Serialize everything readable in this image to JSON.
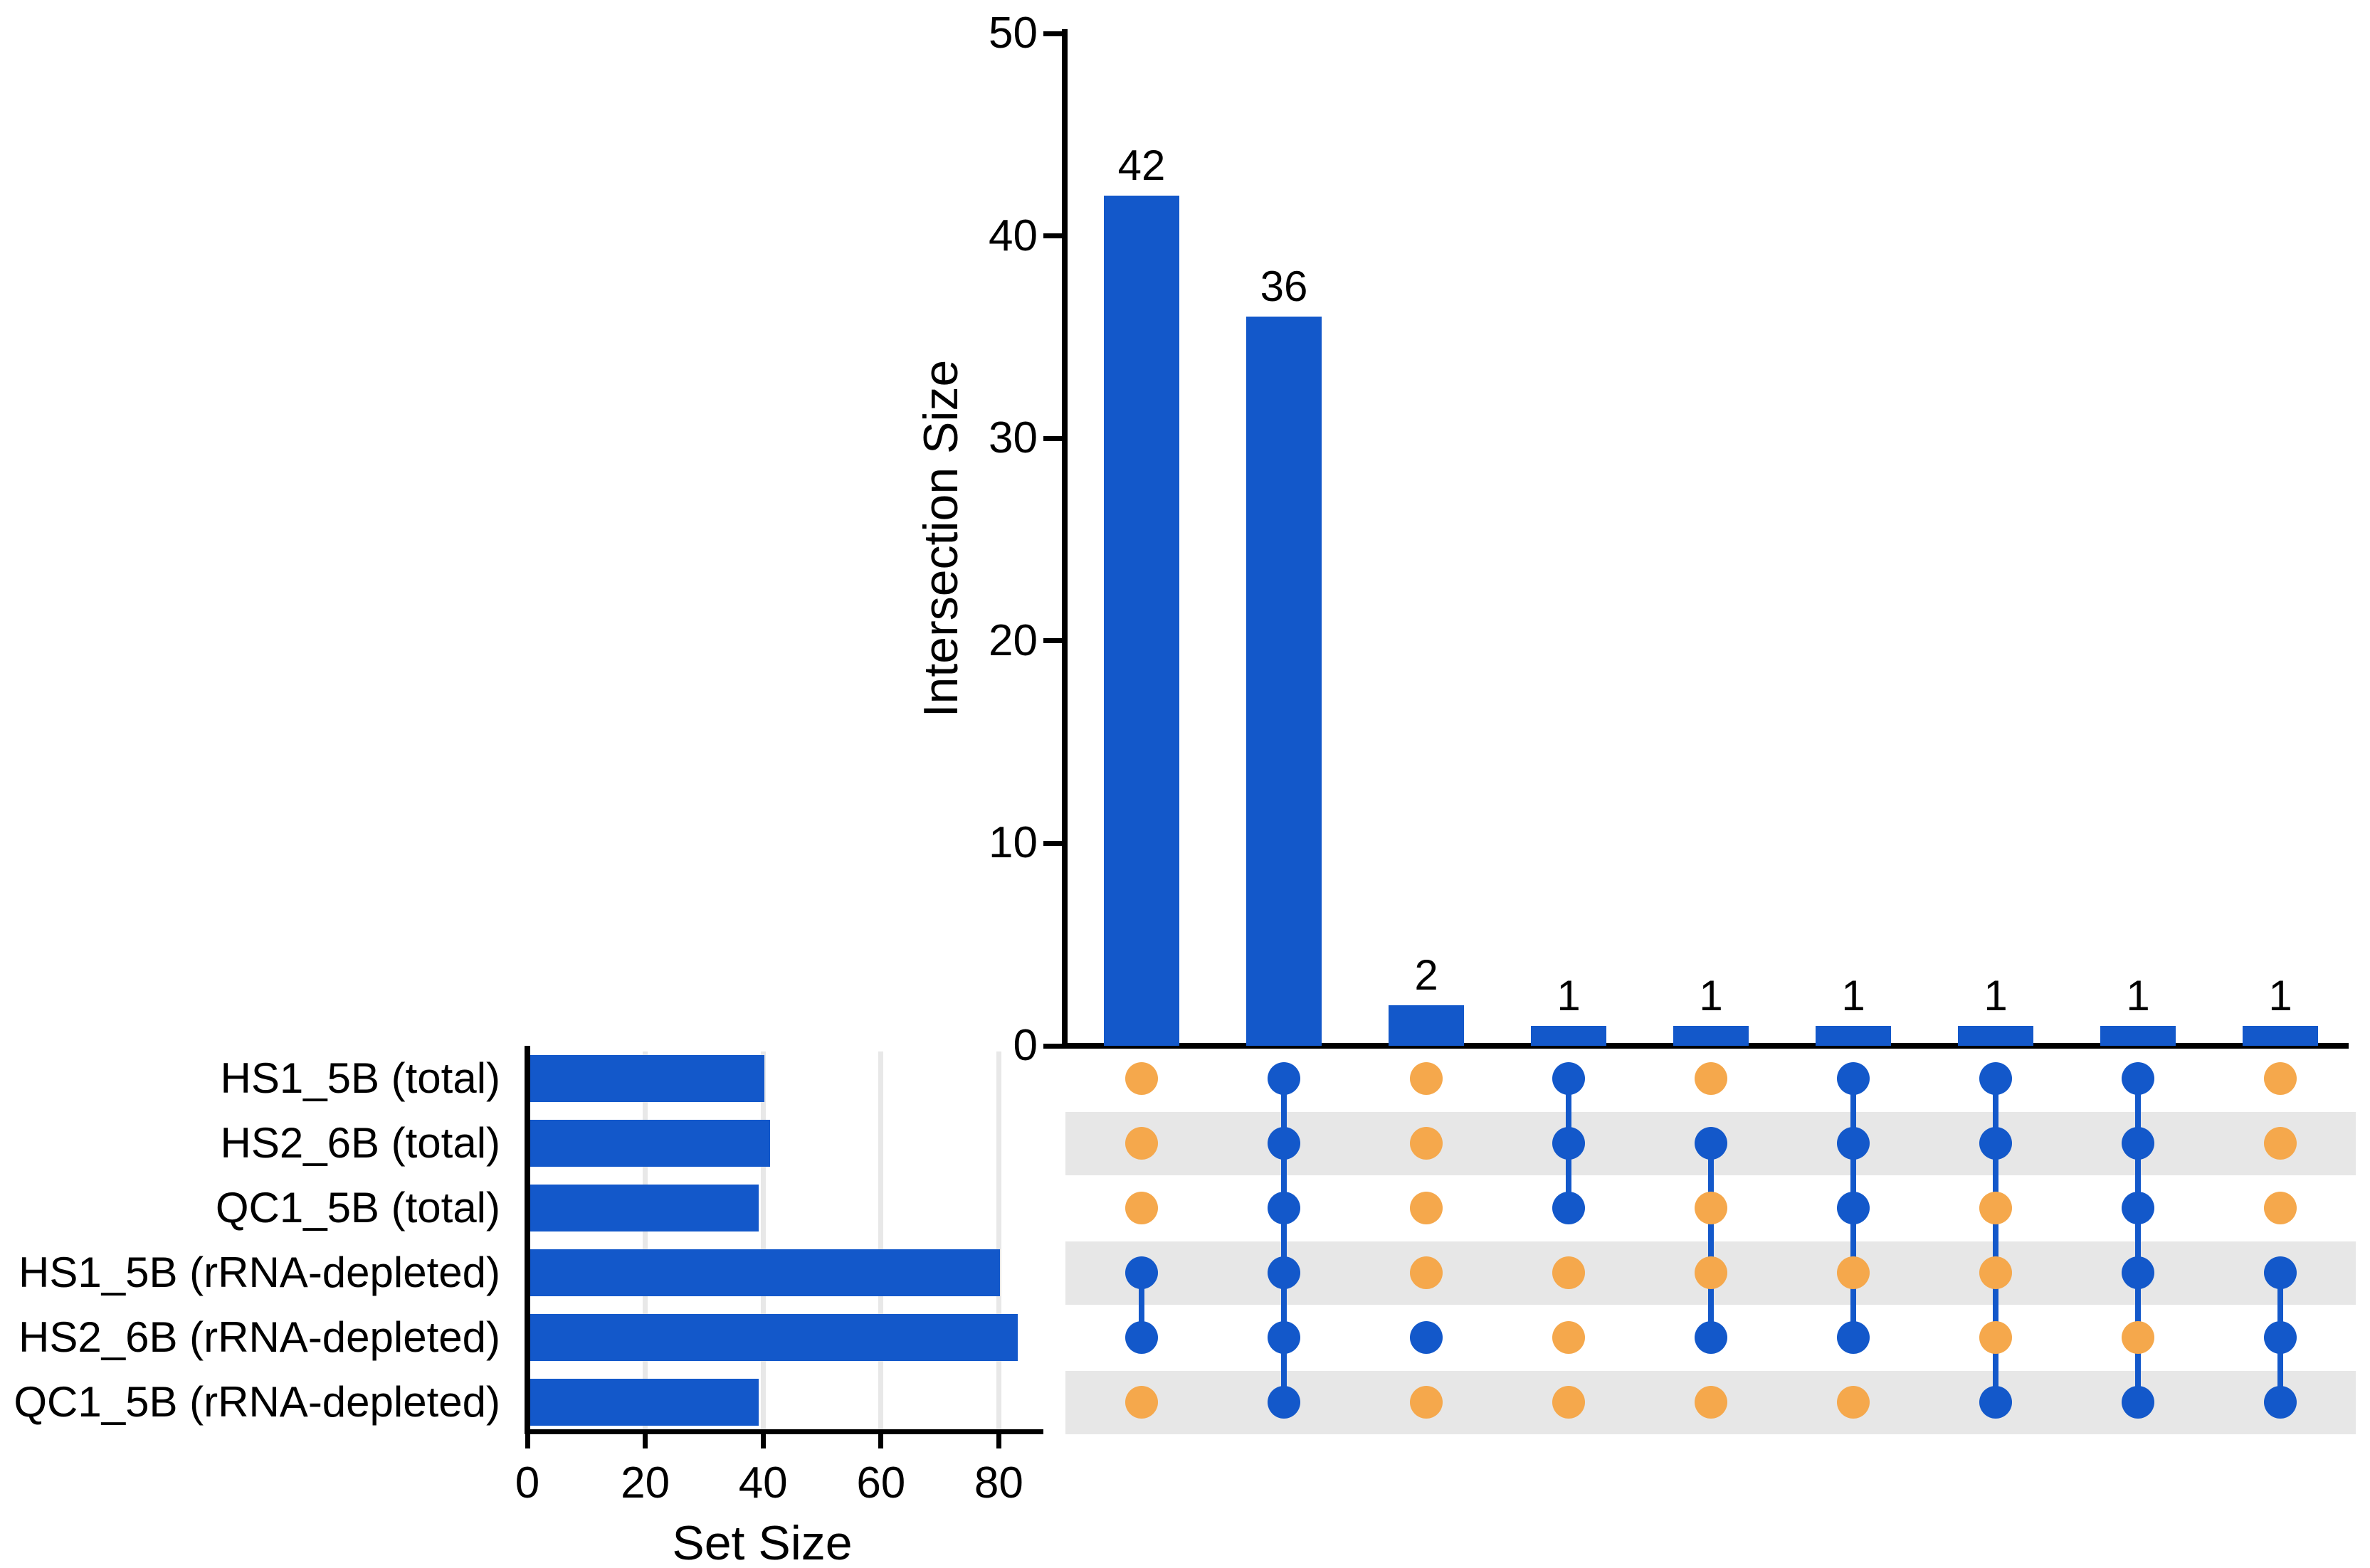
{
  "colors": {
    "bar_blue": "#1358CA",
    "dot_active": "#1358CA",
    "dot_inactive": "#F5A84C",
    "stripe_gray": "#E7E7E7",
    "gridline_gray": "#E8E8E8",
    "axis_black": "#000000"
  },
  "chart_data": {
    "type": "bar",
    "subtype": "upset-plot",
    "intersection_chart": {
      "ylabel": "Intersection Size",
      "ylim": [
        0,
        50
      ],
      "yticks": [
        0,
        10,
        20,
        30,
        40,
        50
      ],
      "values": [
        42,
        36,
        2,
        1,
        1,
        1,
        1,
        1,
        1
      ],
      "value_labels": [
        "42",
        "36",
        "2",
        "1",
        "1",
        "1",
        "1",
        "1",
        "1"
      ],
      "grid": "off",
      "bar_color": "#1358CA"
    },
    "set_chart": {
      "xlabel": "Set Size",
      "xlim": [
        0,
        87.5
      ],
      "xticks": [
        0,
        20,
        40,
        60,
        80
      ],
      "values": [
        40,
        41,
        39,
        80,
        83,
        39
      ],
      "grid": "on",
      "bar_color": "#1358CA"
    },
    "sets": [
      "HS1_5B (total)",
      "HS2_6B (total)",
      "QC1_5B (total)",
      "HS1_5B (rRNA-depleted)",
      "HS2_6B (rRNA-depleted)",
      "QC1_5B (rRNA-depleted)"
    ],
    "matrix_membership": [
      [
        0,
        0,
        0,
        1,
        1,
        0
      ],
      [
        1,
        1,
        1,
        1,
        1,
        1
      ],
      [
        0,
        0,
        0,
        0,
        1,
        0
      ],
      [
        1,
        1,
        1,
        0,
        0,
        0
      ],
      [
        0,
        1,
        0,
        0,
        1,
        0
      ],
      [
        1,
        1,
        1,
        0,
        1,
        0
      ],
      [
        1,
        1,
        0,
        0,
        0,
        1
      ],
      [
        1,
        1,
        1,
        1,
        0,
        1
      ],
      [
        0,
        0,
        0,
        1,
        1,
        1
      ]
    ]
  }
}
